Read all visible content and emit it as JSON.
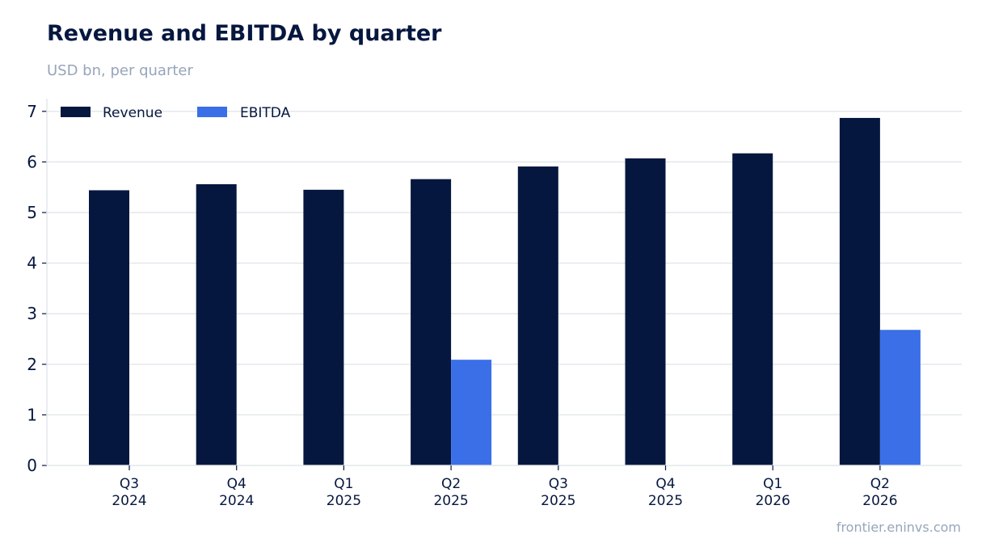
{
  "header": {
    "title": "Revenue and EBITDA by quarter",
    "subtitle": "USD bn, per quarter"
  },
  "footer": {
    "source": "frontier.eninvs.com"
  },
  "colors": {
    "revenue": "#06173f",
    "ebitda": "#3b6fe8",
    "grid": "#e3e7ec",
    "axis_text": "#06173f"
  },
  "chart_data": {
    "type": "bar",
    "title": "Revenue and EBITDA by quarter",
    "subtitle": "USD bn, per quarter",
    "xlabel": "",
    "ylabel": "",
    "categories": [
      [
        "Q3",
        "2024"
      ],
      [
        "Q4",
        "2024"
      ],
      [
        "Q1",
        "2025"
      ],
      [
        "Q2",
        "2025"
      ],
      [
        "Q3",
        "2025"
      ],
      [
        "Q4",
        "2025"
      ],
      [
        "Q1",
        "2026"
      ],
      [
        "Q2",
        "2026"
      ]
    ],
    "series": [
      {
        "name": "Revenue",
        "values": [
          5.44,
          5.56,
          5.45,
          5.66,
          5.91,
          6.07,
          6.17,
          6.87
        ]
      },
      {
        "name": "EBITDA",
        "values": [
          null,
          null,
          null,
          2.09,
          null,
          null,
          null,
          2.68
        ]
      }
    ],
    "ylim": [
      0,
      7.2
    ],
    "yticks": [
      0,
      1,
      2,
      3,
      4,
      5,
      6,
      7
    ],
    "grid": "horizontal",
    "legend_position": "top-left"
  }
}
